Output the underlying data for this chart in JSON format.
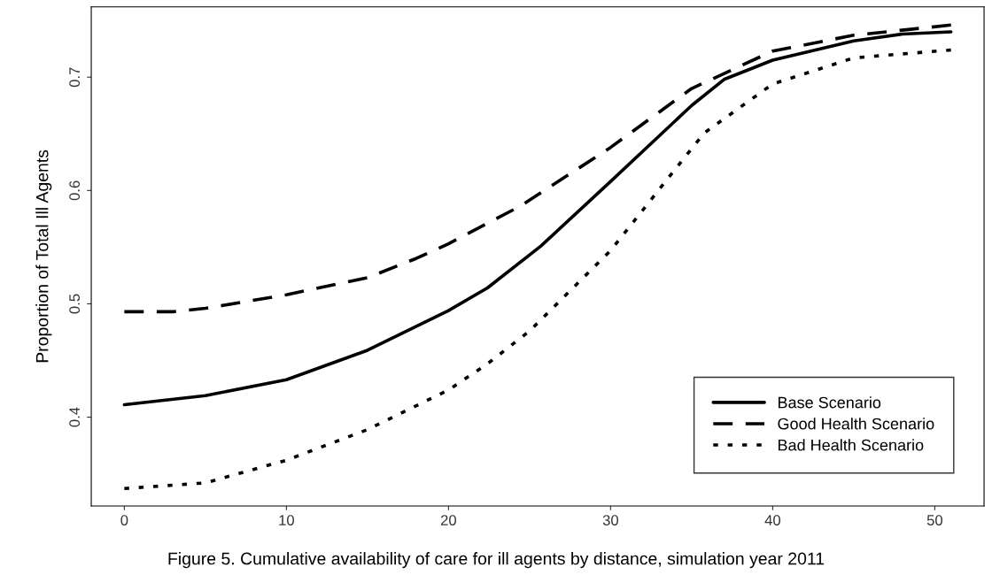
{
  "chart_data": {
    "type": "line",
    "ylabel": "Proportion of Total Ill Agents",
    "annotations": [
      "Figure 5. Cumulative availability of care for ill agents by distance, simulation year 2011"
    ],
    "xlim": [
      -2.04,
      53.04
    ],
    "ylim": [
      0.3216,
      0.762
    ],
    "xticks": [
      0,
      10,
      20,
      30,
      40,
      50
    ],
    "yticks": [
      0.4,
      0.5,
      0.6,
      0.7
    ],
    "grid": false,
    "legend": "bottom right",
    "series": [
      {
        "name": "Base Scenario",
        "color": "#000000",
        "line_style": "solid",
        "x": [
          0,
          5,
          10,
          15,
          20,
          22.4,
          25.7,
          30,
          35,
          37,
          40,
          45,
          48,
          51
        ],
        "values": [
          0.411,
          0.419,
          0.433,
          0.459,
          0.494,
          0.514,
          0.551,
          0.608,
          0.675,
          0.698,
          0.715,
          0.732,
          0.738,
          0.74
        ]
      },
      {
        "name": "Good Health Scenario",
        "color": "#000000",
        "line_style": "dashed",
        "x": [
          0,
          3,
          5,
          10,
          15,
          18,
          20,
          22.4,
          24.4,
          30,
          35,
          40,
          45,
          51
        ],
        "values": [
          0.493,
          0.493,
          0.496,
          0.508,
          0.523,
          0.54,
          0.553,
          0.571,
          0.586,
          0.638,
          0.69,
          0.723,
          0.737,
          0.746
        ]
      },
      {
        "name": "Bad Health Scenario",
        "color": "#000000",
        "line_style": "dotted",
        "x": [
          0,
          5,
          10,
          15,
          20,
          22.4,
          25,
          30,
          35,
          35.8,
          40,
          45,
          51
        ],
        "values": [
          0.337,
          0.342,
          0.362,
          0.389,
          0.424,
          0.447,
          0.476,
          0.547,
          0.637,
          0.651,
          0.694,
          0.717,
          0.724
        ]
      }
    ]
  }
}
